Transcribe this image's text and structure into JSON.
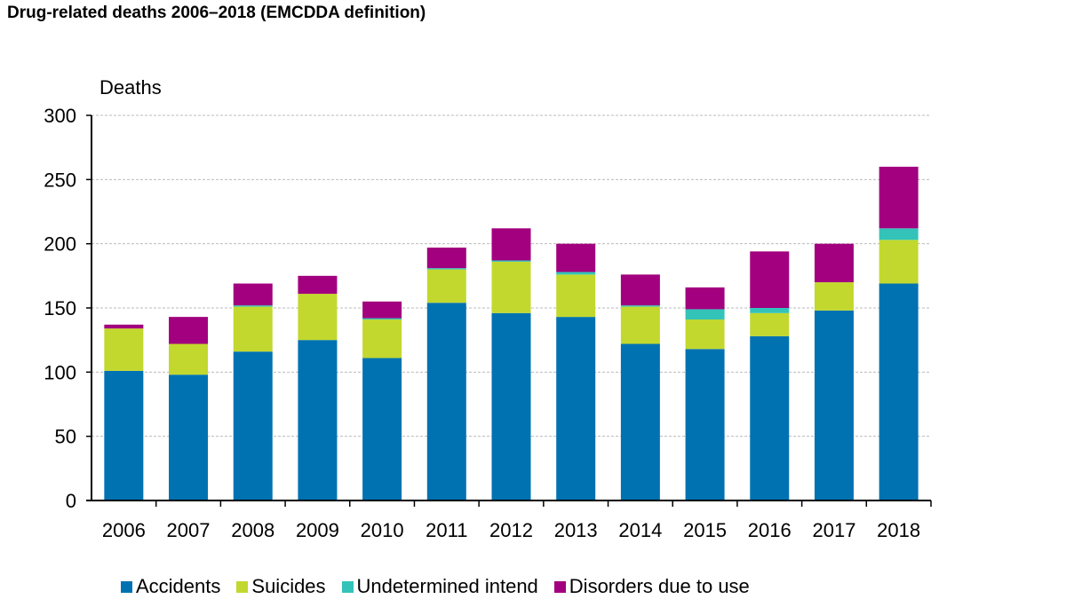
{
  "title": "Drug-related deaths 2006–2018 (EMCDDA definition)",
  "chart_data": {
    "type": "bar",
    "stacked": true,
    "title": "Drug-related deaths 2006–2018 (EMCDDA definition)",
    "ylabel": "Deaths",
    "xlabel": "",
    "ylim": [
      0,
      300
    ],
    "yticks": [
      0,
      50,
      100,
      150,
      200,
      250,
      300
    ],
    "grid": true,
    "legend_position": "bottom",
    "categories": [
      "2006",
      "2007",
      "2008",
      "2009",
      "2010",
      "2011",
      "2012",
      "2013",
      "2014",
      "2015",
      "2016",
      "2017",
      "2018"
    ],
    "series": [
      {
        "name": "Accidents",
        "color": "#0072B1",
        "values": [
          101,
          98,
          116,
          125,
          111,
          154,
          146,
          143,
          122,
          118,
          128,
          148,
          169
        ]
      },
      {
        "name": "Suicides",
        "color": "#C2D82E",
        "values": [
          33,
          24,
          35,
          36,
          30,
          26,
          40,
          33,
          29,
          23,
          18,
          22,
          34
        ]
      },
      {
        "name": "Undetermined intend",
        "color": "#33C3B9",
        "values": [
          0,
          0,
          1,
          0,
          1,
          1,
          1,
          2,
          1,
          8,
          4,
          0,
          9
        ]
      },
      {
        "name": "Disorders due to use",
        "color": "#A2007E",
        "values": [
          3,
          21,
          17,
          14,
          13,
          16,
          25,
          22,
          24,
          17,
          44,
          30,
          48
        ]
      }
    ]
  }
}
